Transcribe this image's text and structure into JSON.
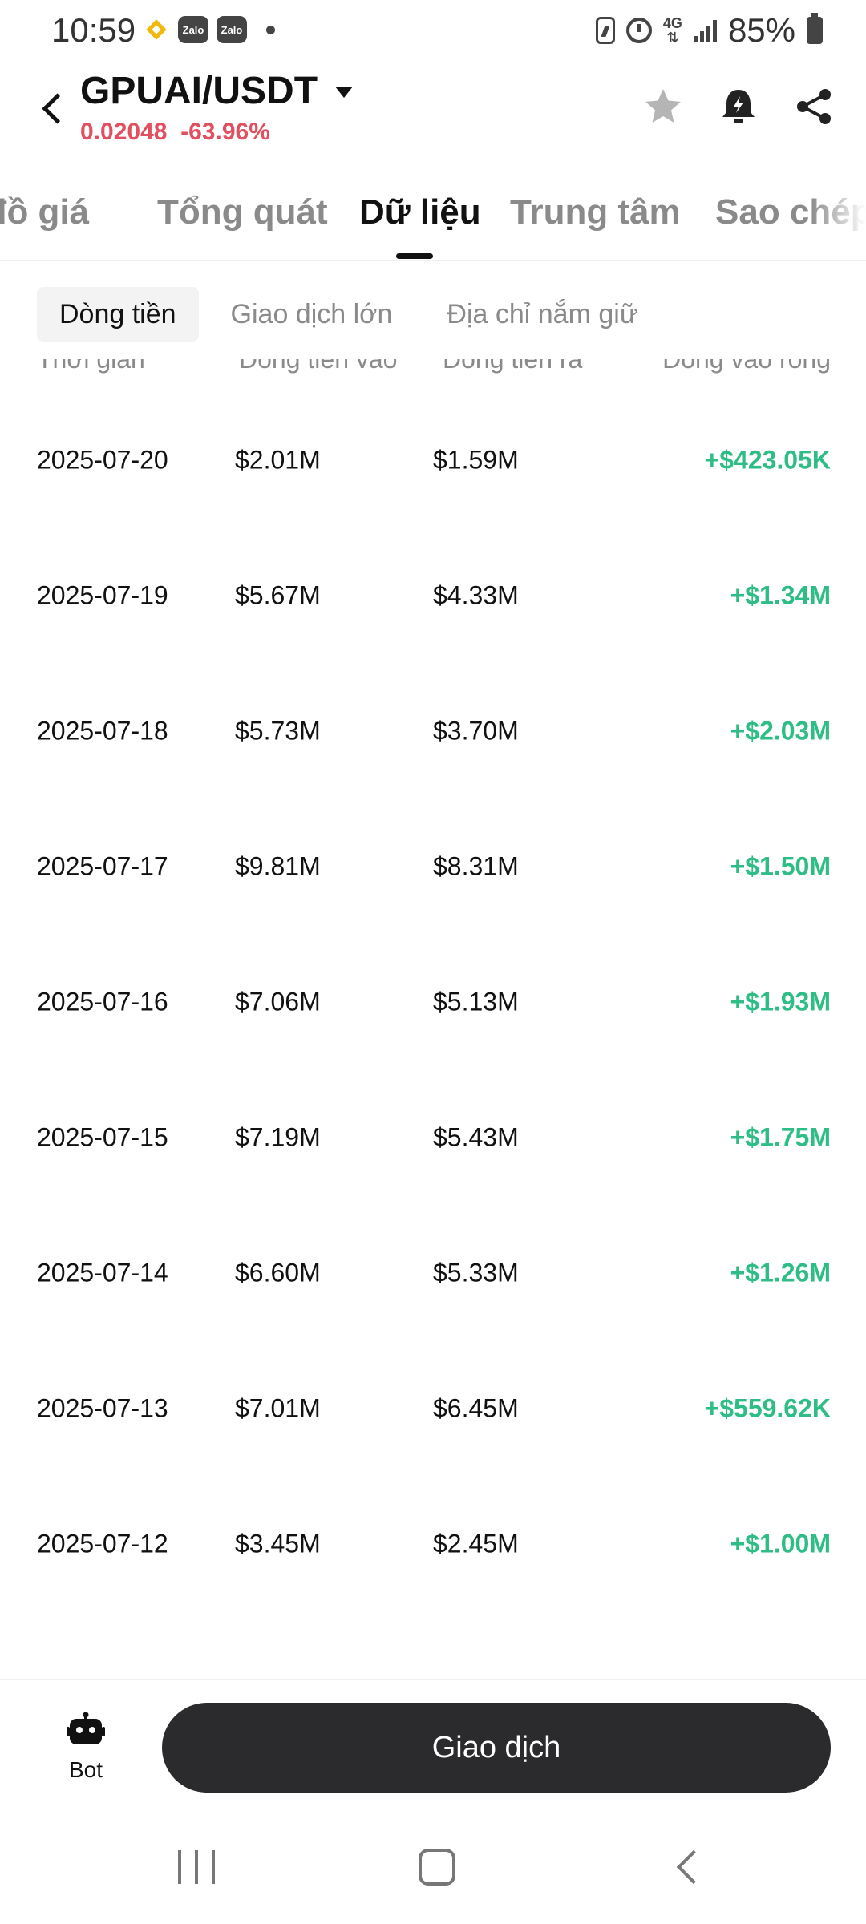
{
  "status_bar": {
    "time": "10:59",
    "zalo_label": "Zalo",
    "network_label": "4G",
    "battery_percent": "85%"
  },
  "header": {
    "pair": "GPUAI/USDT",
    "price": "0.02048",
    "change": "-63.96%",
    "price_color": "#E0505F"
  },
  "main_tabs": [
    {
      "label": "Biểu đồ giá"
    },
    {
      "label": "Tổng quát"
    },
    {
      "label": "Dữ liệu",
      "active": true
    },
    {
      "label": "Trung tâm"
    },
    {
      "label": "Sao chép"
    }
  ],
  "sub_tabs": [
    {
      "label": "Dòng tiền",
      "active": true
    },
    {
      "label": "Giao dịch lớn"
    },
    {
      "label": "Địa chỉ nắm giữ"
    }
  ],
  "table": {
    "headers": [
      "Thời gian",
      "Dòng tiền vào",
      "Dòng tiền ra",
      "Dòng vào ròng"
    ],
    "rows": [
      {
        "date": "2025-07-20",
        "inflow": "$2.01M",
        "outflow": "$1.59M",
        "net": "+$423.05K"
      },
      {
        "date": "2025-07-19",
        "inflow": "$5.67M",
        "outflow": "$4.33M",
        "net": "+$1.34M"
      },
      {
        "date": "2025-07-18",
        "inflow": "$5.73M",
        "outflow": "$3.70M",
        "net": "+$2.03M"
      },
      {
        "date": "2025-07-17",
        "inflow": "$9.81M",
        "outflow": "$8.31M",
        "net": "+$1.50M"
      },
      {
        "date": "2025-07-16",
        "inflow": "$7.06M",
        "outflow": "$5.13M",
        "net": "+$1.93M"
      },
      {
        "date": "2025-07-15",
        "inflow": "$7.19M",
        "outflow": "$5.43M",
        "net": "+$1.75M"
      },
      {
        "date": "2025-07-14",
        "inflow": "$6.60M",
        "outflow": "$5.33M",
        "net": "+$1.26M"
      },
      {
        "date": "2025-07-13",
        "inflow": "$7.01M",
        "outflow": "$6.45M",
        "net": "+$559.62K"
      },
      {
        "date": "2025-07-12",
        "inflow": "$3.45M",
        "outflow": "$2.45M",
        "net": "+$1.00M"
      }
    ],
    "positive_color": "#2EBD85"
  },
  "bottom": {
    "bot_label": "Bot",
    "trade_label": "Giao dịch"
  },
  "icons": {
    "back": "back-icon",
    "star": "star-icon",
    "alert": "bell-alert-icon",
    "share": "share-icon",
    "bot": "robot-icon"
  }
}
